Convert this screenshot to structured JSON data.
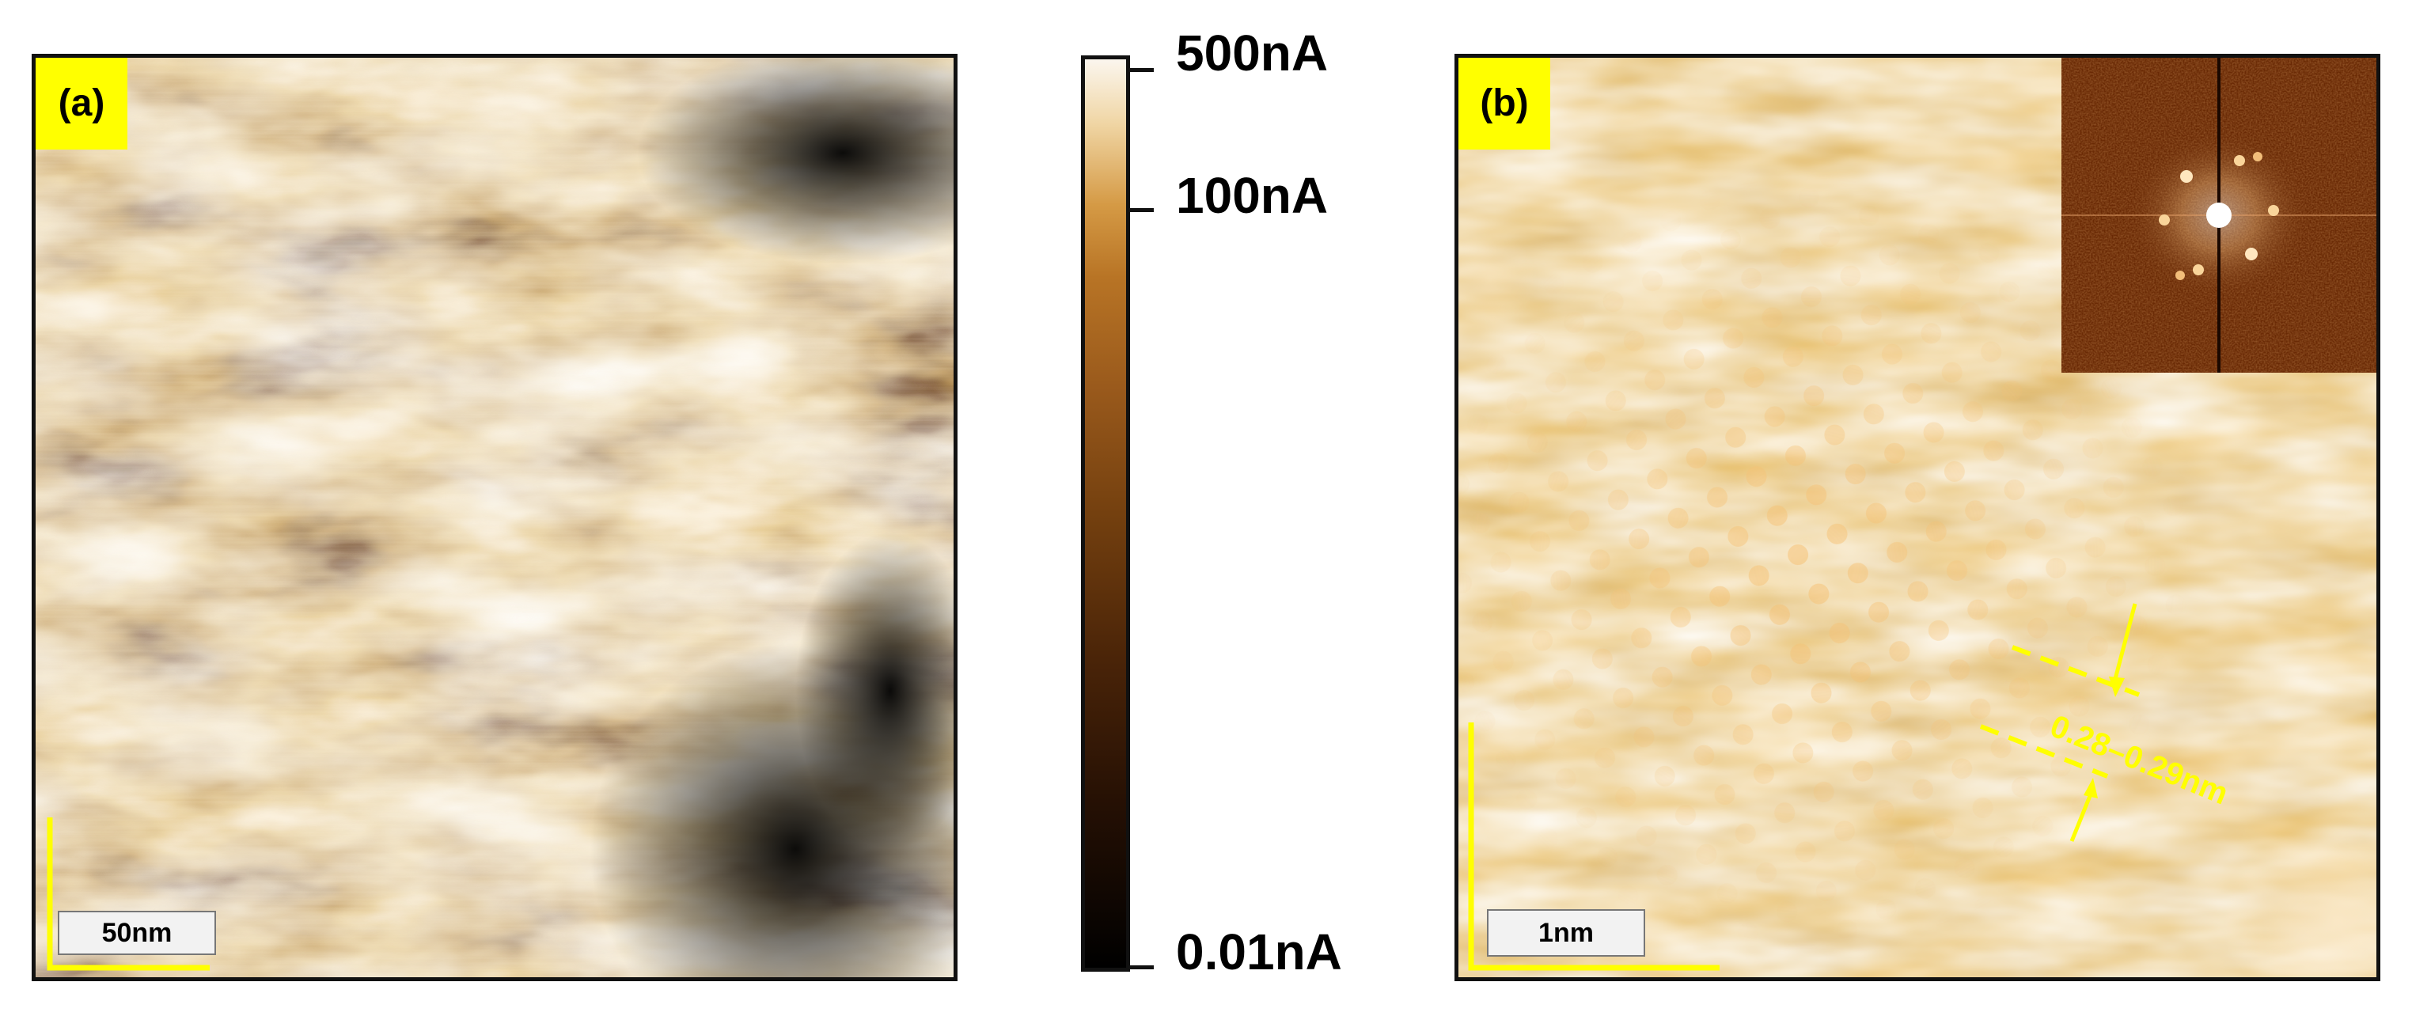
{
  "panel_a": {
    "label": "(a)",
    "scale_bar": "50nm"
  },
  "panel_b": {
    "label": "(b)",
    "scale_bar": "1nm",
    "measurement": "0.28–0.29nm"
  },
  "colorbar": {
    "max_label": "500nA",
    "mid_label": "100nA",
    "min_label": "0.01nA"
  },
  "colors": {
    "label_bg": "#ffff00",
    "annotation": "#ffff00"
  }
}
